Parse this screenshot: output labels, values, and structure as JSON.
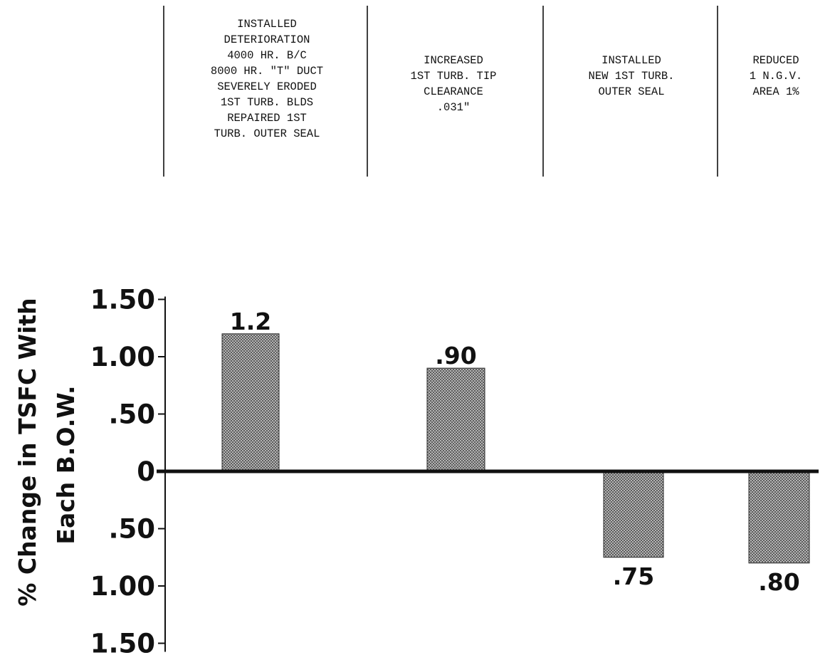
{
  "chart_data": {
    "type": "bar",
    "categories": [
      [
        "INSTALLED",
        "DETERIORATION",
        "4000 HR. B/C",
        "8000 HR. \"T\" DUCT",
        "SEVERELY ERODED",
        "1ST TURB. BLDS",
        "REPAIRED 1ST",
        "TURB. OUTER SEAL"
      ],
      [
        "INCREASED",
        "1ST TURB. TIP",
        "CLEARANCE",
        ".031\""
      ],
      [
        "INSTALLED",
        "NEW 1ST TURB.",
        "OUTER SEAL"
      ],
      [
        "REDUCED",
        "1 N.G.V.",
        "AREA 1%"
      ]
    ],
    "values": [
      1.2,
      0.9,
      -0.75,
      -0.8
    ],
    "value_labels": [
      "1.2",
      ".90",
      ".75",
      ".80"
    ],
    "ylabel": [
      "% Change in TSFC With",
      "Each B.O.W."
    ],
    "ytick_values": [
      1.5,
      1.0,
      0.5,
      0,
      -0.5,
      -1.0,
      -1.5
    ],
    "ytick_labels": [
      "1.50",
      "1.00",
      ".50",
      "0",
      ".50",
      "1.00",
      "1.50"
    ],
    "ylim": [
      -1.5,
      1.5
    ],
    "grid": false,
    "bar_color": "#2a2a2a"
  }
}
